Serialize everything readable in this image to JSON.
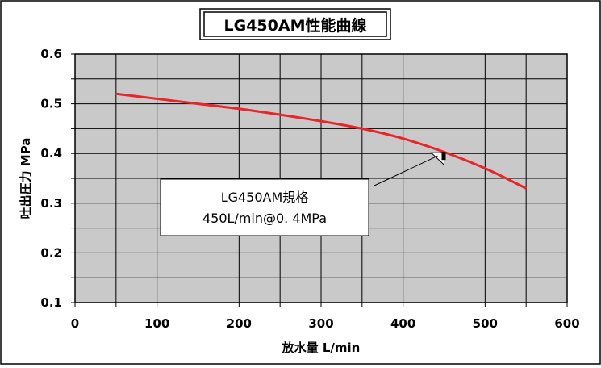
{
  "chart_data": {
    "type": "line",
    "title": "LG450AM性能曲線",
    "xlabel": "放水量 L/min",
    "ylabel": "吐出圧力 MPa",
    "xlim": [
      0,
      600
    ],
    "ylim": [
      0.1,
      0.6
    ],
    "x_ticks": [
      "0",
      "100",
      "200",
      "300",
      "400",
      "500",
      "600"
    ],
    "y_ticks": [
      "0.1",
      "0.2",
      "0.3",
      "0.4",
      "0.5",
      "0.6"
    ],
    "grid": true,
    "series": [
      {
        "color": "#e8252a",
        "x": [
          50,
          100,
          150,
          200,
          250,
          300,
          350,
          400,
          450,
          500,
          550
        ],
        "y": [
          0.52,
          0.51,
          0.5,
          0.49,
          0.478,
          0.465,
          0.45,
          0.43,
          0.403,
          0.37,
          0.33
        ]
      }
    ],
    "spec_point": {
      "x": 450,
      "y": 0.4
    },
    "annotation": {
      "line1": "LG450AM規格",
      "line2": "450L/min@0. 4MPa"
    },
    "colors": {
      "plot_bg": "#c9c9c9",
      "grid": "#000000",
      "curve": "#e8252a"
    }
  }
}
